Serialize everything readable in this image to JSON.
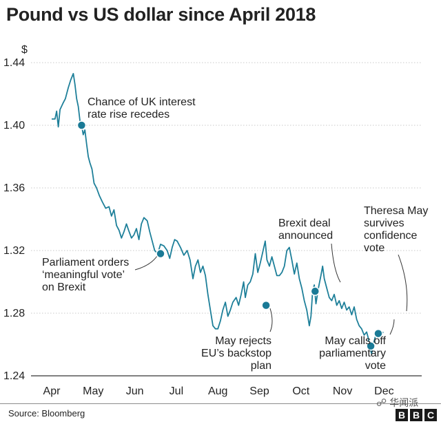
{
  "title": "Pound vs US dollar since April 2018",
  "source": "Source: Bloomberg",
  "watermark": "华闻派",
  "brand": [
    "B",
    "B",
    "C"
  ],
  "colors": {
    "line": "#1d7f99",
    "marker": "#1a7a96",
    "grid": "#c8c8c8",
    "text": "#222222"
  },
  "chart_data": {
    "type": "line",
    "title": "Pound vs US dollar since April 2018",
    "xlabel": "",
    "ylabel": "$",
    "ylim": [
      1.24,
      1.44
    ],
    "yticks": [
      "1.24",
      "1.28",
      "1.32",
      "1.36",
      "1.40",
      "1.44"
    ],
    "xticks": [
      "Apr",
      "May",
      "Jun",
      "Jul",
      "Aug",
      "Sep",
      "Oct",
      "Nov",
      "Dec"
    ],
    "x_unit": "month index (0 = start of April 2018)",
    "grid": true,
    "series": [
      {
        "name": "GBP/USD",
        "points": [
          [
            0.0,
            1.404
          ],
          [
            0.08,
            1.404
          ],
          [
            0.12,
            1.409
          ],
          [
            0.16,
            1.399
          ],
          [
            0.2,
            1.41
          ],
          [
            0.27,
            1.414
          ],
          [
            0.33,
            1.417
          ],
          [
            0.4,
            1.424
          ],
          [
            0.46,
            1.429
          ],
          [
            0.52,
            1.433
          ],
          [
            0.56,
            1.426
          ],
          [
            0.6,
            1.417
          ],
          [
            0.64,
            1.412
          ],
          [
            0.68,
            1.403
          ],
          [
            0.72,
            1.4
          ],
          [
            0.76,
            1.394
          ],
          [
            0.8,
            1.397
          ],
          [
            0.84,
            1.388
          ],
          [
            0.88,
            1.38
          ],
          [
            0.92,
            1.376
          ],
          [
            0.97,
            1.372
          ],
          [
            1.02,
            1.363
          ],
          [
            1.08,
            1.36
          ],
          [
            1.15,
            1.355
          ],
          [
            1.22,
            1.351
          ],
          [
            1.3,
            1.347
          ],
          [
            1.38,
            1.348
          ],
          [
            1.44,
            1.342
          ],
          [
            1.5,
            1.346
          ],
          [
            1.56,
            1.336
          ],
          [
            1.62,
            1.333
          ],
          [
            1.68,
            1.328
          ],
          [
            1.74,
            1.332
          ],
          [
            1.8,
            1.337
          ],
          [
            1.85,
            1.333
          ],
          [
            1.92,
            1.328
          ],
          [
            1.98,
            1.33
          ],
          [
            2.04,
            1.334
          ],
          [
            2.1,
            1.327
          ],
          [
            2.16,
            1.337
          ],
          [
            2.22,
            1.341
          ],
          [
            2.3,
            1.339
          ],
          [
            2.36,
            1.332
          ],
          [
            2.42,
            1.326
          ],
          [
            2.48,
            1.32
          ],
          [
            2.55,
            1.318
          ],
          [
            2.62,
            1.324
          ],
          [
            2.7,
            1.323
          ],
          [
            2.78,
            1.32
          ],
          [
            2.84,
            1.315
          ],
          [
            2.9,
            1.322
          ],
          [
            2.96,
            1.327
          ],
          [
            3.02,
            1.326
          ],
          [
            3.1,
            1.322
          ],
          [
            3.18,
            1.317
          ],
          [
            3.26,
            1.32
          ],
          [
            3.33,
            1.314
          ],
          [
            3.4,
            1.302
          ],
          [
            3.46,
            1.31
          ],
          [
            3.52,
            1.314
          ],
          [
            3.58,
            1.306
          ],
          [
            3.64,
            1.31
          ],
          [
            3.7,
            1.304
          ],
          [
            3.76,
            1.292
          ],
          [
            3.82,
            1.282
          ],
          [
            3.88,
            1.272
          ],
          [
            3.94,
            1.27
          ],
          [
            4.0,
            1.27
          ],
          [
            4.06,
            1.275
          ],
          [
            4.12,
            1.282
          ],
          [
            4.18,
            1.287
          ],
          [
            4.24,
            1.278
          ],
          [
            4.3,
            1.282
          ],
          [
            4.36,
            1.287
          ],
          [
            4.44,
            1.29
          ],
          [
            4.5,
            1.285
          ],
          [
            4.56,
            1.292
          ],
          [
            4.62,
            1.3
          ],
          [
            4.66,
            1.29
          ],
          [
            4.72,
            1.298
          ],
          [
            4.78,
            1.3
          ],
          [
            4.84,
            1.305
          ],
          [
            4.9,
            1.318
          ],
          [
            4.96,
            1.306
          ],
          [
            5.02,
            1.312
          ],
          [
            5.08,
            1.319
          ],
          [
            5.14,
            1.326
          ],
          [
            5.18,
            1.314
          ],
          [
            5.24,
            1.31
          ],
          [
            5.3,
            1.316
          ],
          [
            5.36,
            1.31
          ],
          [
            5.42,
            1.304
          ],
          [
            5.48,
            1.304
          ],
          [
            5.54,
            1.306
          ],
          [
            5.6,
            1.31
          ],
          [
            5.66,
            1.32
          ],
          [
            5.72,
            1.322
          ],
          [
            5.78,
            1.314
          ],
          [
            5.84,
            1.305
          ],
          [
            5.9,
            1.312
          ],
          [
            5.96,
            1.302
          ],
          [
            6.02,
            1.296
          ],
          [
            6.08,
            1.288
          ],
          [
            6.14,
            1.282
          ],
          [
            6.2,
            1.272
          ],
          [
            6.24,
            1.278
          ],
          [
            6.28,
            1.294
          ],
          [
            6.32,
            1.298
          ],
          [
            6.36,
            1.286
          ],
          [
            6.42,
            1.296
          ],
          [
            6.48,
            1.304
          ],
          [
            6.52,
            1.31
          ],
          [
            6.56,
            1.302
          ],
          [
            6.62,
            1.296
          ],
          [
            6.68,
            1.29
          ],
          [
            6.74,
            1.288
          ],
          [
            6.8,
            1.292
          ],
          [
            6.86,
            1.285
          ],
          [
            6.92,
            1.288
          ],
          [
            6.98,
            1.283
          ],
          [
            7.04,
            1.287
          ],
          [
            7.1,
            1.282
          ],
          [
            7.16,
            1.284
          ],
          [
            7.22,
            1.279
          ],
          [
            7.28,
            1.284
          ],
          [
            7.34,
            1.276
          ],
          [
            7.4,
            1.272
          ],
          [
            7.46,
            1.27
          ],
          [
            7.52,
            1.266
          ],
          [
            7.58,
            1.268
          ],
          [
            7.62,
            1.264
          ],
          [
            7.66,
            1.258
          ],
          [
            7.7,
            1.254
          ],
          [
            7.74,
            1.26
          ],
          [
            7.8,
            1.266
          ],
          [
            7.86,
            1.268
          ],
          [
            7.92,
            1.266
          ],
          [
            7.98,
            1.268
          ]
        ]
      }
    ],
    "annotations": [
      {
        "name": "interest-rate",
        "text": [
          "Chance of UK interest",
          "rate rise recedes"
        ],
        "x": 0.72,
        "y": 1.4
      },
      {
        "name": "meaningful-vote",
        "text": [
          "Parliament orders",
          "‘meaningful vote’",
          "on Brexit"
        ],
        "x": 2.62,
        "y": 1.318
      },
      {
        "name": "backstop",
        "text": [
          "May rejects",
          "EU’s backstop",
          "plan"
        ],
        "x": 5.16,
        "y": 1.285
      },
      {
        "name": "brexit-deal",
        "text": [
          "Brexit deal",
          "announced"
        ],
        "x": 6.34,
        "y": 1.294
      },
      {
        "name": "calls-off-vote",
        "text": [
          "May calls off",
          "parliamentary",
          "vote"
        ],
        "x": 7.68,
        "y": 1.259
      },
      {
        "name": "confidence-vote",
        "text": [
          "Theresa May",
          "survives",
          "confidence",
          "vote"
        ],
        "x": 7.86,
        "y": 1.267
      }
    ]
  }
}
